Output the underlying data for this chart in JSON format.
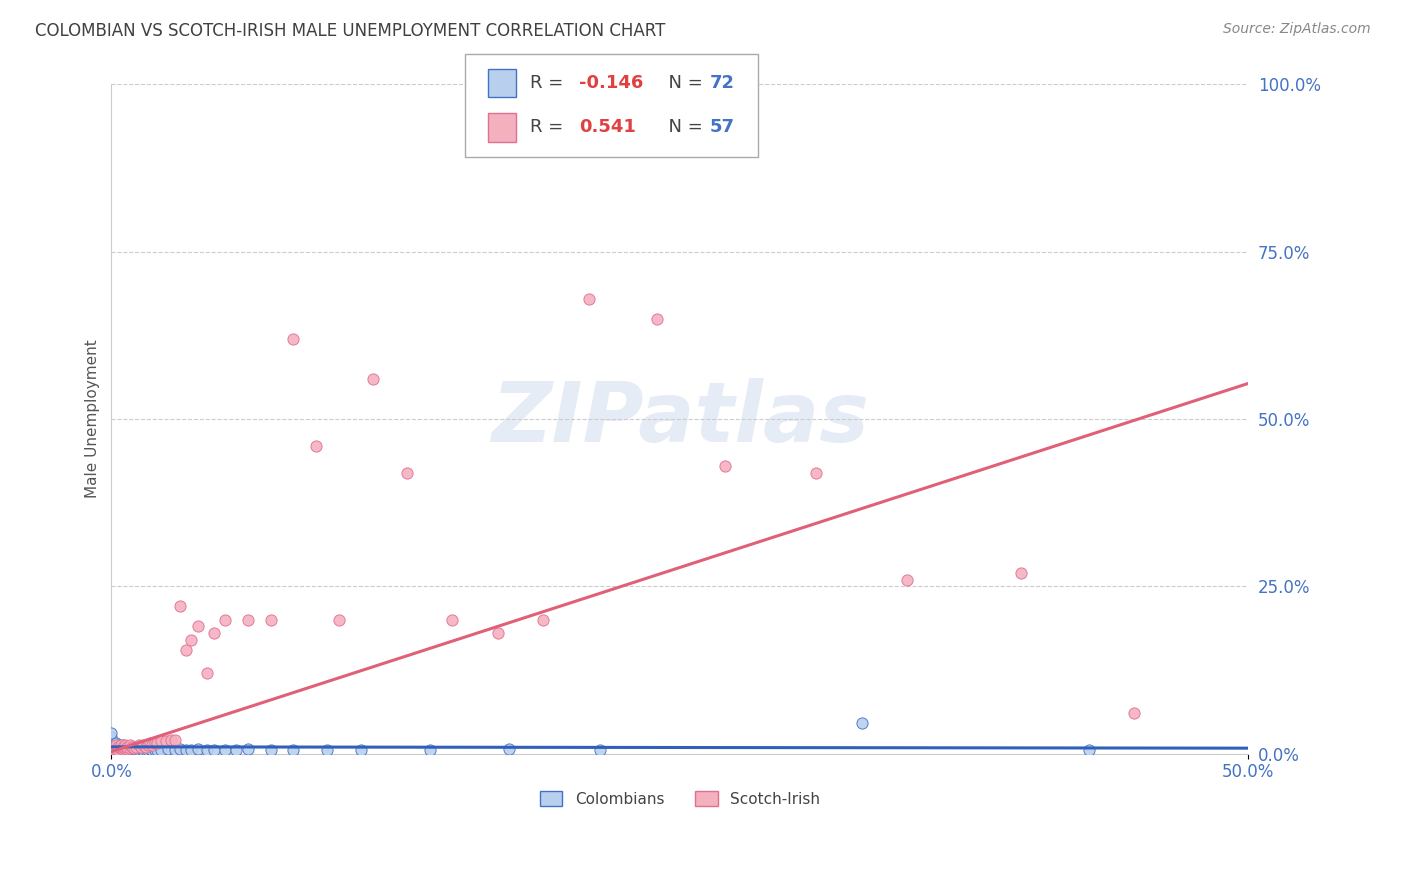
{
  "title": "COLOMBIAN VS SCOTCH-IRISH MALE UNEMPLOYMENT CORRELATION CHART",
  "source": "Source: ZipAtlas.com",
  "ylabel": "Male Unemployment",
  "background_color": "#ffffff",
  "grid_color": "#cccccc",
  "colombian_color": "#b8d0ee",
  "scotch_irish_color": "#f5b0c0",
  "colombian_edge_color": "#4472c4",
  "scotch_irish_edge_color": "#e07090",
  "colombian_line_color": "#3060b8",
  "scotch_irish_line_color": "#e06078",
  "blue_text_color": "#4472c4",
  "red_text_color": "#e04040",
  "dark_text_color": "#444444",
  "source_color": "#888888",
  "legend_r_colombian": "-0.146",
  "legend_n_colombian": "72",
  "legend_r_scotch": "0.541",
  "legend_n_scotch": "57",
  "watermark": "ZIPatlas",
  "marker_size": 65,
  "colombian_x": [
    0.0,
    0.0,
    0.0,
    0.0,
    0.0,
    0.0,
    0.0,
    0.0,
    0.0,
    0.0,
    0.001,
    0.001,
    0.001,
    0.002,
    0.002,
    0.002,
    0.002,
    0.003,
    0.003,
    0.003,
    0.003,
    0.004,
    0.004,
    0.004,
    0.005,
    0.005,
    0.005,
    0.005,
    0.006,
    0.006,
    0.006,
    0.007,
    0.007,
    0.007,
    0.008,
    0.008,
    0.009,
    0.009,
    0.01,
    0.01,
    0.011,
    0.011,
    0.012,
    0.013,
    0.014,
    0.015,
    0.016,
    0.017,
    0.018,
    0.019,
    0.02,
    0.022,
    0.025,
    0.028,
    0.03,
    0.033,
    0.035,
    0.038,
    0.042,
    0.045,
    0.05,
    0.055,
    0.06,
    0.07,
    0.08,
    0.095,
    0.11,
    0.14,
    0.175,
    0.215,
    0.33,
    0.43
  ],
  "colombian_y": [
    0.005,
    0.008,
    0.01,
    0.012,
    0.015,
    0.018,
    0.02,
    0.022,
    0.025,
    0.03,
    0.005,
    0.008,
    0.01,
    0.006,
    0.008,
    0.012,
    0.015,
    0.005,
    0.007,
    0.01,
    0.012,
    0.006,
    0.008,
    0.01,
    0.005,
    0.007,
    0.009,
    0.012,
    0.006,
    0.008,
    0.01,
    0.005,
    0.007,
    0.01,
    0.006,
    0.008,
    0.005,
    0.008,
    0.006,
    0.008,
    0.005,
    0.007,
    0.006,
    0.007,
    0.006,
    0.005,
    0.006,
    0.007,
    0.005,
    0.006,
    0.005,
    0.006,
    0.007,
    0.006,
    0.007,
    0.006,
    0.005,
    0.007,
    0.006,
    0.005,
    0.006,
    0.005,
    0.007,
    0.006,
    0.005,
    0.006,
    0.005,
    0.006,
    0.007,
    0.006,
    0.045,
    0.005
  ],
  "scotch_x": [
    0.0,
    0.001,
    0.001,
    0.002,
    0.002,
    0.003,
    0.003,
    0.004,
    0.004,
    0.005,
    0.005,
    0.006,
    0.006,
    0.007,
    0.007,
    0.008,
    0.008,
    0.009,
    0.01,
    0.011,
    0.012,
    0.013,
    0.014,
    0.015,
    0.016,
    0.017,
    0.018,
    0.019,
    0.02,
    0.022,
    0.024,
    0.026,
    0.028,
    0.03,
    0.033,
    0.035,
    0.038,
    0.042,
    0.045,
    0.05,
    0.06,
    0.07,
    0.08,
    0.09,
    0.1,
    0.115,
    0.13,
    0.15,
    0.17,
    0.19,
    0.21,
    0.24,
    0.27,
    0.31,
    0.35,
    0.4,
    0.45
  ],
  "scotch_y": [
    0.005,
    0.007,
    0.01,
    0.008,
    0.012,
    0.006,
    0.01,
    0.008,
    0.012,
    0.007,
    0.01,
    0.008,
    0.012,
    0.007,
    0.01,
    0.008,
    0.012,
    0.01,
    0.008,
    0.01,
    0.012,
    0.01,
    0.012,
    0.01,
    0.012,
    0.015,
    0.012,
    0.015,
    0.015,
    0.018,
    0.018,
    0.02,
    0.02,
    0.22,
    0.155,
    0.17,
    0.19,
    0.12,
    0.18,
    0.2,
    0.2,
    0.2,
    0.62,
    0.46,
    0.2,
    0.56,
    0.42,
    0.2,
    0.18,
    0.2,
    0.68,
    0.65,
    0.43,
    0.42,
    0.26,
    0.27,
    0.06
  ],
  "xlim": [
    0.0,
    0.5
  ],
  "ylim": [
    0.0,
    1.0
  ],
  "xtick_positions": [
    0.0,
    0.5
  ],
  "xtick_labels": [
    "0.0%",
    "50.0%"
  ],
  "ytick_positions": [
    0.0,
    0.25,
    0.5,
    0.75,
    1.0
  ],
  "ytick_labels": [
    "0.0%",
    "25.0%",
    "50.0%",
    "75.0%",
    "100.0%"
  ]
}
